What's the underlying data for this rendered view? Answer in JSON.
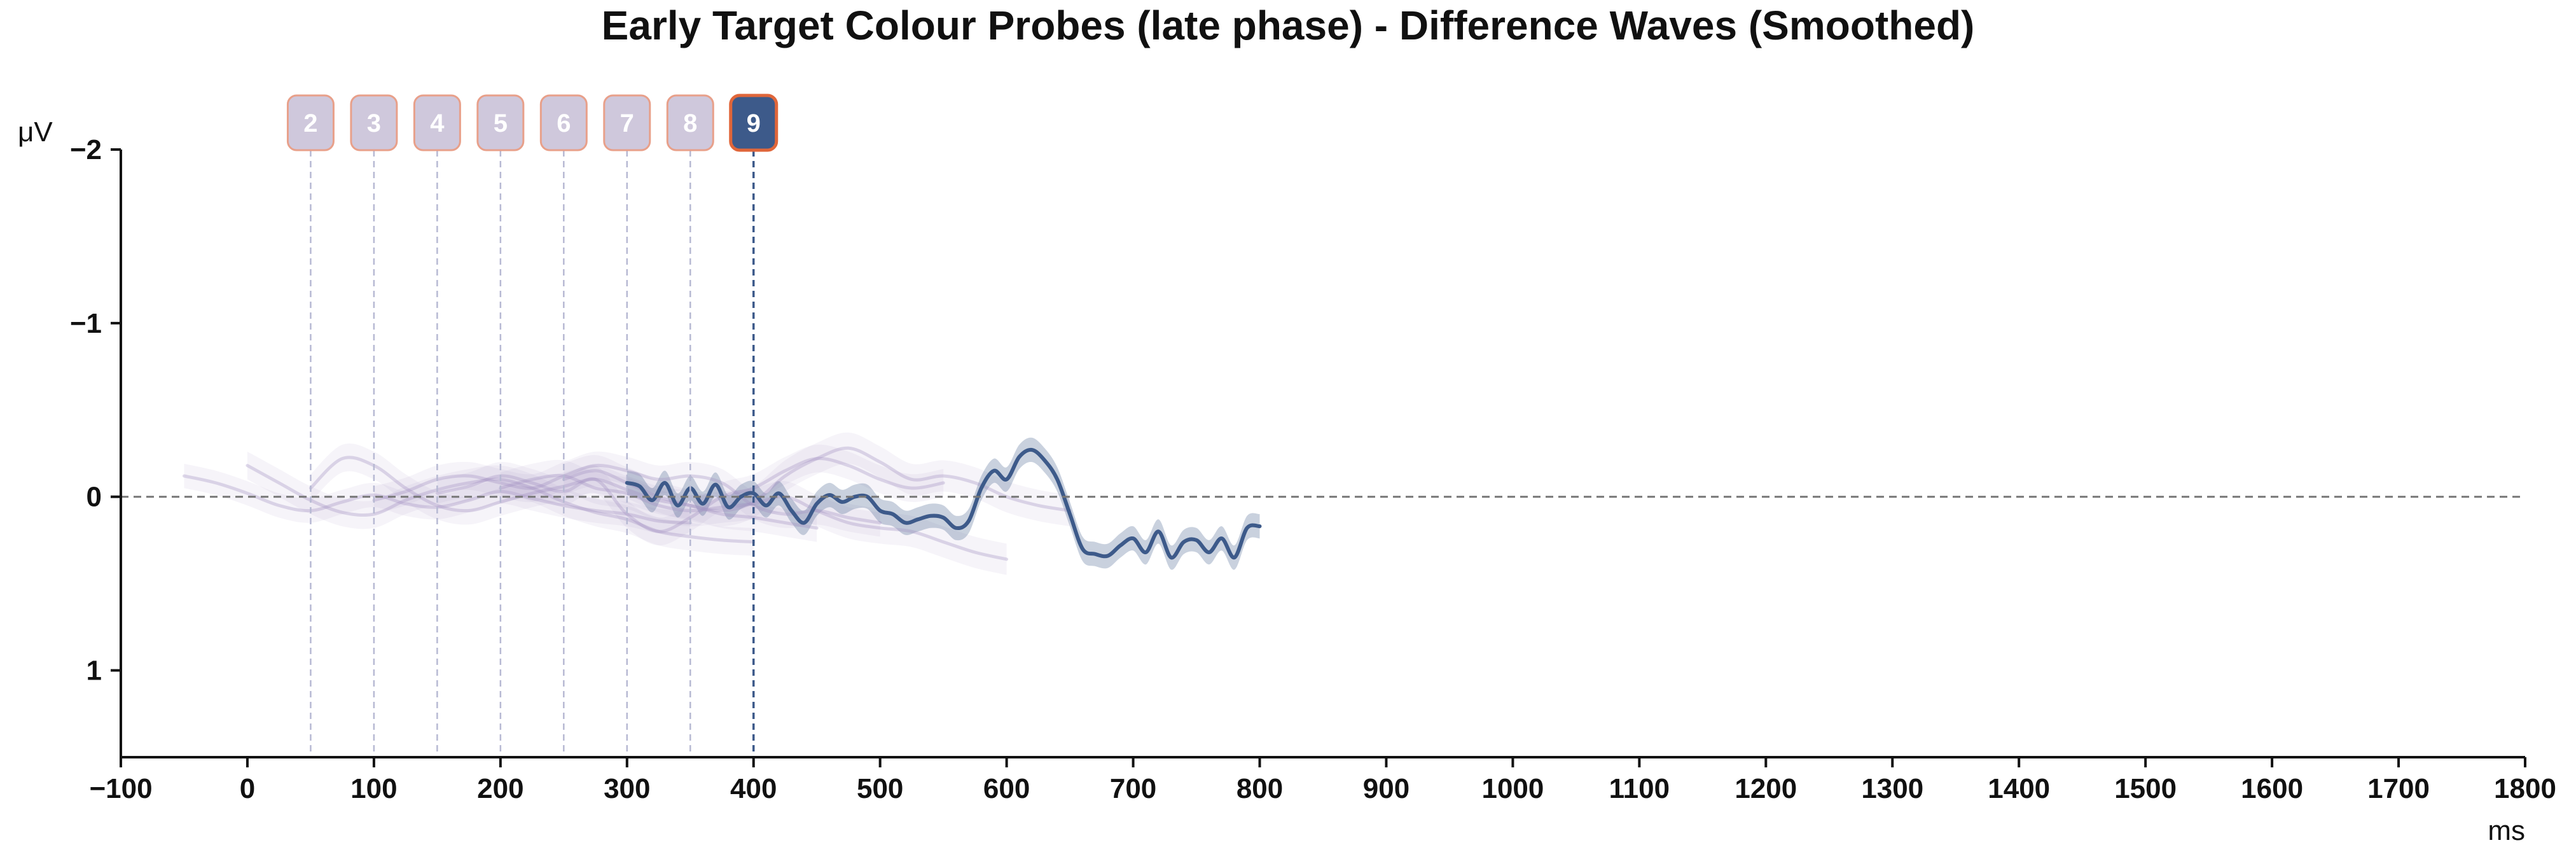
{
  "chart_data": {
    "type": "line",
    "title": "Early Target Colour Probes (late phase) - Difference Waves (Smoothed)",
    "xlabel": "ms",
    "ylabel": "μV",
    "xlim": [
      -100,
      1800
    ],
    "ylim": [
      -2,
      1.5
    ],
    "y_inverted": true,
    "grid": false,
    "x_ticks": [
      -100,
      0,
      100,
      200,
      300,
      400,
      500,
      600,
      700,
      800,
      900,
      1000,
      1100,
      1200,
      1300,
      1400,
      1500,
      1600,
      1700,
      1800
    ],
    "x_tick_labels": [
      "−100",
      "0",
      "100",
      "200",
      "300",
      "400",
      "500",
      "600",
      "700",
      "800",
      "900",
      "1000",
      "1100",
      "1200",
      "1300",
      "1400",
      "1500",
      "1600",
      "1700",
      "1800"
    ],
    "y_ticks": [
      -2,
      -1,
      0,
      1
    ],
    "y_tick_labels": [
      "−2",
      "−1",
      "0",
      "1"
    ],
    "zero_line": {
      "y": 0,
      "style": "dashed",
      "color": "#777777"
    },
    "probe_markers": [
      {
        "label": "2",
        "x": 50,
        "active": false
      },
      {
        "label": "3",
        "x": 100,
        "active": false
      },
      {
        "label": "4",
        "x": 150,
        "active": false
      },
      {
        "label": "5",
        "x": 200,
        "active": false
      },
      {
        "label": "6",
        "x": 250,
        "active": false
      },
      {
        "label": "7",
        "x": 300,
        "active": false
      },
      {
        "label": "8",
        "x": 350,
        "active": false
      },
      {
        "label": "9",
        "x": 400,
        "active": true
      }
    ],
    "colors": {
      "active": "#3d5a8a",
      "faded": "#a493c4",
      "marker_fill": "#cfc8dc",
      "marker_border": "#e8a08a",
      "active_border": "#e0663a"
    },
    "series": [
      {
        "x": [
          -50,
          -25,
          0,
          25,
          50,
          75,
          100,
          125,
          150,
          175,
          200,
          225,
          250,
          275,
          300,
          325,
          350
        ],
        "y": [
          -0.12,
          -0.08,
          -0.02,
          0.05,
          0.08,
          0.03,
          -0.01,
          0.04,
          0.06,
          0.02,
          -0.03,
          0.01,
          0.05,
          0.08,
          0.1,
          0.14,
          0.15
        ],
        "ci": 0.07,
        "active": false
      },
      {
        "x": [
          0,
          25,
          50,
          75,
          100,
          125,
          150,
          175,
          200,
          225,
          250,
          275,
          300,
          325,
          350,
          375,
          400
        ],
        "y": [
          -0.18,
          -0.08,
          0.02,
          0.09,
          0.1,
          0.02,
          -0.04,
          -0.08,
          -0.1,
          -0.05,
          0.03,
          0.09,
          0.13,
          0.2,
          0.23,
          0.25,
          0.26
        ],
        "ci": 0.08,
        "active": false
      },
      {
        "x": [
          50,
          75,
          100,
          125,
          150,
          175,
          200,
          225,
          250,
          275,
          300,
          325,
          350,
          375,
          400,
          425,
          450
        ],
        "y": [
          -0.05,
          -0.22,
          -0.18,
          -0.05,
          0.05,
          0.08,
          0.03,
          -0.02,
          -0.06,
          -0.1,
          -0.04,
          0.02,
          0.05,
          0.1,
          0.12,
          0.15,
          0.18
        ],
        "ci": 0.08,
        "active": false
      },
      {
        "x": [
          100,
          125,
          150,
          175,
          200,
          225,
          250,
          275,
          300,
          325,
          350,
          375,
          400,
          425,
          450,
          475,
          500
        ],
        "y": [
          0.02,
          -0.03,
          -0.1,
          -0.12,
          -0.08,
          -0.05,
          -0.12,
          -0.18,
          -0.15,
          -0.1,
          -0.12,
          -0.08,
          0.05,
          0.1,
          0.08,
          0.12,
          0.15
        ],
        "ci": 0.08,
        "active": false
      },
      {
        "x": [
          150,
          175,
          200,
          225,
          250,
          275,
          300,
          325,
          350,
          375,
          400,
          425,
          450,
          475,
          500,
          525,
          550
        ],
        "y": [
          -0.02,
          -0.06,
          -0.12,
          -0.08,
          -0.03,
          -0.1,
          0.1,
          0.2,
          0.12,
          0.0,
          -0.05,
          -0.15,
          -0.22,
          -0.18,
          -0.1,
          -0.05,
          -0.08
        ],
        "ci": 0.08,
        "active": false
      },
      {
        "x": [
          200,
          225,
          250,
          275,
          300,
          325,
          350,
          375,
          400,
          425,
          450,
          475,
          500,
          525,
          550,
          575,
          600
        ],
        "y": [
          -0.05,
          -0.1,
          -0.12,
          -0.05,
          -0.02,
          0.05,
          0.08,
          0.06,
          0.04,
          0.0,
          0.08,
          0.15,
          0.18,
          0.2,
          0.26,
          0.32,
          0.36
        ],
        "ci": 0.09,
        "active": false
      },
      {
        "x": [
          250,
          275,
          300,
          325,
          350,
          375,
          400,
          425,
          450,
          475,
          500,
          525,
          550,
          575,
          600,
          625,
          650
        ],
        "y": [
          -0.1,
          -0.15,
          -0.08,
          0.0,
          0.05,
          0.08,
          0.03,
          -0.12,
          -0.22,
          -0.28,
          -0.2,
          -0.1,
          -0.12,
          -0.08,
          0.0,
          0.05,
          0.08
        ],
        "ci": 0.09,
        "active": false
      },
      {
        "x": [
          300,
          310,
          320,
          330,
          340,
          350,
          360,
          370,
          380,
          390,
          400,
          410,
          420,
          430,
          440,
          450,
          460,
          470,
          480,
          490,
          500,
          510,
          520,
          530,
          540,
          550,
          560,
          570,
          580,
          590,
          600,
          610,
          620,
          630,
          640,
          650,
          660,
          670,
          680,
          690,
          700,
          710,
          720,
          730,
          740,
          750,
          760,
          770,
          780,
          790,
          800
        ],
        "y": [
          -0.08,
          -0.06,
          0.02,
          -0.08,
          0.05,
          -0.05,
          0.04,
          -0.07,
          0.06,
          0.0,
          -0.02,
          0.05,
          -0.02,
          0.08,
          0.15,
          0.04,
          -0.01,
          0.03,
          0.0,
          0.0,
          0.08,
          0.1,
          0.15,
          0.13,
          0.11,
          0.12,
          0.18,
          0.14,
          -0.05,
          -0.15,
          -0.1,
          -0.23,
          -0.27,
          -0.21,
          -0.1,
          0.1,
          0.3,
          0.33,
          0.34,
          0.28,
          0.24,
          0.32,
          0.2,
          0.35,
          0.26,
          0.25,
          0.32,
          0.24,
          0.35,
          0.18,
          0.17
        ],
        "ci": 0.07,
        "active": true
      }
    ]
  }
}
